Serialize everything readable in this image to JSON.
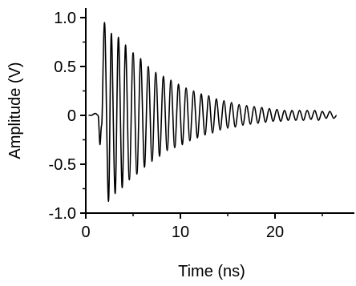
{
  "chart_data": {
    "type": "line",
    "title": "",
    "xlabel": "Time (ns)",
    "ylabel": "Amplitude (V)",
    "xlim": [
      0,
      27
    ],
    "ylim": [
      -1.0,
      1.15
    ],
    "x_ticks": [
      0,
      10,
      20
    ],
    "x_tick_labels": [
      "0",
      "10",
      "20"
    ],
    "y_ticks": [
      1.0,
      0.5,
      0,
      -0.5,
      -1.0
    ],
    "y_tick_labels": [
      "1.0",
      "0.5",
      "0",
      "-0.5",
      "-1.0"
    ],
    "grid": false,
    "legend": "none",
    "series": [
      {
        "color": "#000000",
        "description_points": {
          "x": [
            0.6,
            1.0,
            1.3,
            1.5,
            1.68,
            1.98,
            2.4,
            2.7,
            3.1,
            3.45,
            3.85,
            4.2,
            4.6,
            5.0,
            5.4,
            5.8,
            6.2,
            6.6,
            7.0,
            7.4,
            7.8,
            8.2,
            8.6,
            9.0,
            9.4,
            9.8,
            10.2,
            10.6,
            11.0,
            11.4,
            11.8,
            12.2,
            12.6,
            13.0,
            13.4,
            13.8,
            14.2,
            14.6,
            15.0,
            15.4,
            15.8,
            16.2,
            16.6,
            17.0,
            17.4,
            17.8,
            18.2,
            18.6,
            19.0,
            19.4,
            19.8,
            20.2,
            20.6,
            21.0,
            21.4,
            21.8,
            22.2,
            22.6,
            23.0,
            23.4,
            23.8,
            24.2,
            24.6,
            25.0,
            25.4,
            25.8,
            26.2,
            26.5
          ],
          "y": [
            0.0,
            0.02,
            0.0,
            -0.3,
            -0.1,
            0.95,
            -0.88,
            0.84,
            -0.8,
            0.8,
            -0.74,
            0.72,
            -0.66,
            0.64,
            -0.6,
            0.58,
            -0.53,
            0.5,
            -0.47,
            0.44,
            -0.42,
            0.4,
            -0.36,
            0.36,
            -0.33,
            0.32,
            -0.3,
            0.28,
            -0.26,
            0.25,
            -0.23,
            0.22,
            -0.2,
            0.2,
            -0.18,
            0.17,
            -0.15,
            0.15,
            -0.13,
            0.13,
            -0.12,
            0.11,
            -0.1,
            0.1,
            -0.09,
            0.09,
            -0.08,
            0.08,
            -0.07,
            0.07,
            -0.06,
            0.06,
            -0.06,
            0.05,
            -0.05,
            0.05,
            -0.05,
            0.05,
            -0.05,
            0.05,
            -0.04,
            0.05,
            -0.05,
            0.04,
            -0.03,
            0.04,
            -0.03,
            0.0
          ]
        }
      }
    ]
  }
}
